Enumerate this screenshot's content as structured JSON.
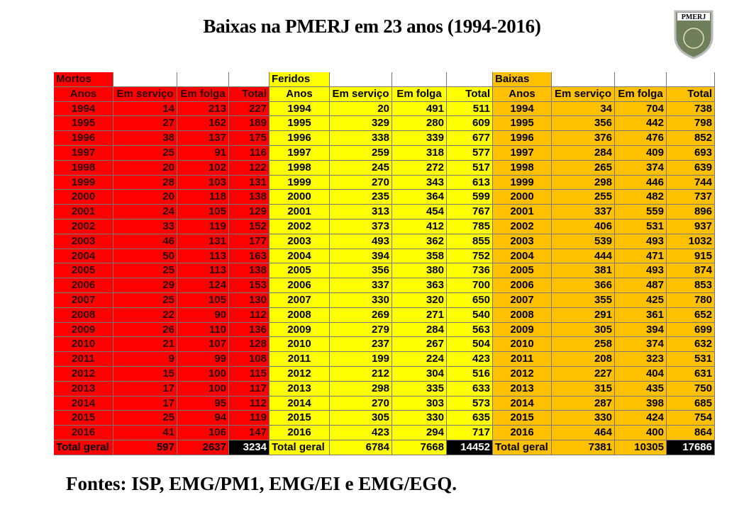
{
  "title": "Baixas na PMERJ em 23 anos (1994-2016)",
  "logo": {
    "text": "PMERJ"
  },
  "sections": [
    {
      "label": "Mortos",
      "headers": [
        "Anos",
        "Em serviço",
        "Em folga",
        "Total"
      ],
      "rows": [
        [
          1994,
          14,
          213,
          227
        ],
        [
          1995,
          27,
          162,
          189
        ],
        [
          1996,
          38,
          137,
          175
        ],
        [
          1997,
          25,
          91,
          116
        ],
        [
          1998,
          20,
          102,
          122
        ],
        [
          1999,
          28,
          103,
          131
        ],
        [
          2000,
          20,
          118,
          138
        ],
        [
          2001,
          24,
          105,
          129
        ],
        [
          2002,
          33,
          119,
          152
        ],
        [
          2003,
          46,
          131,
          177
        ],
        [
          2004,
          50,
          113,
          163
        ],
        [
          2005,
          25,
          113,
          138
        ],
        [
          2006,
          29,
          124,
          153
        ],
        [
          2007,
          25,
          105,
          130
        ],
        [
          2008,
          22,
          90,
          112
        ],
        [
          2009,
          26,
          110,
          136
        ],
        [
          2010,
          21,
          107,
          128
        ],
        [
          2011,
          9,
          99,
          108
        ],
        [
          2012,
          15,
          100,
          115
        ],
        [
          2013,
          17,
          100,
          117
        ],
        [
          2014,
          17,
          95,
          112
        ],
        [
          2015,
          25,
          94,
          119
        ],
        [
          2016,
          41,
          106,
          147
        ]
      ],
      "total": [
        "Total geral",
        597,
        2637,
        3234
      ]
    },
    {
      "label": "Feridos",
      "headers": [
        "Anos",
        "Em serviço",
        "Em folga",
        "Total"
      ],
      "rows": [
        [
          1994,
          20,
          491,
          511
        ],
        [
          1995,
          329,
          280,
          609
        ],
        [
          1996,
          338,
          339,
          677
        ],
        [
          1997,
          259,
          318,
          577
        ],
        [
          1998,
          245,
          272,
          517
        ],
        [
          1999,
          270,
          343,
          613
        ],
        [
          2000,
          235,
          364,
          599
        ],
        [
          2001,
          313,
          454,
          767
        ],
        [
          2002,
          373,
          412,
          785
        ],
        [
          2003,
          493,
          362,
          855
        ],
        [
          2004,
          394,
          358,
          752
        ],
        [
          2005,
          356,
          380,
          736
        ],
        [
          2006,
          337,
          363,
          700
        ],
        [
          2007,
          330,
          320,
          650
        ],
        [
          2008,
          269,
          271,
          540
        ],
        [
          2009,
          279,
          284,
          563
        ],
        [
          2010,
          237,
          267,
          504
        ],
        [
          2011,
          199,
          224,
          423
        ],
        [
          2012,
          212,
          304,
          516
        ],
        [
          2013,
          298,
          335,
          633
        ],
        [
          2014,
          270,
          303,
          573
        ],
        [
          2015,
          305,
          330,
          635
        ],
        [
          2016,
          423,
          294,
          717
        ]
      ],
      "total": [
        "Total geral",
        6784,
        7668,
        14452
      ]
    },
    {
      "label": "Baixas",
      "headers": [
        "Anos",
        "Em serviço",
        "Em folga",
        "Total"
      ],
      "rows": [
        [
          1994,
          34,
          704,
          738
        ],
        [
          1995,
          356,
          442,
          798
        ],
        [
          1996,
          376,
          476,
          852
        ],
        [
          1997,
          284,
          409,
          693
        ],
        [
          1998,
          265,
          374,
          639
        ],
        [
          1999,
          298,
          446,
          744
        ],
        [
          2000,
          255,
          482,
          737
        ],
        [
          2001,
          337,
          559,
          896
        ],
        [
          2002,
          406,
          531,
          937
        ],
        [
          2003,
          539,
          493,
          1032
        ],
        [
          2004,
          444,
          471,
          915
        ],
        [
          2005,
          381,
          493,
          874
        ],
        [
          2006,
          366,
          487,
          853
        ],
        [
          2007,
          355,
          425,
          780
        ],
        [
          2008,
          291,
          361,
          652
        ],
        [
          2009,
          305,
          394,
          699
        ],
        [
          2010,
          258,
          374,
          632
        ],
        [
          2011,
          208,
          323,
          531
        ],
        [
          2012,
          227,
          404,
          631
        ],
        [
          2013,
          315,
          435,
          750
        ],
        [
          2014,
          287,
          398,
          685
        ],
        [
          2015,
          330,
          424,
          754
        ],
        [
          2016,
          464,
          400,
          864
        ]
      ],
      "total": [
        "Total geral",
        7381,
        10305,
        17686
      ]
    }
  ],
  "footer": "Fontes: ISP, EMG/PM1, EMG/EI e EMG/EGQ."
}
